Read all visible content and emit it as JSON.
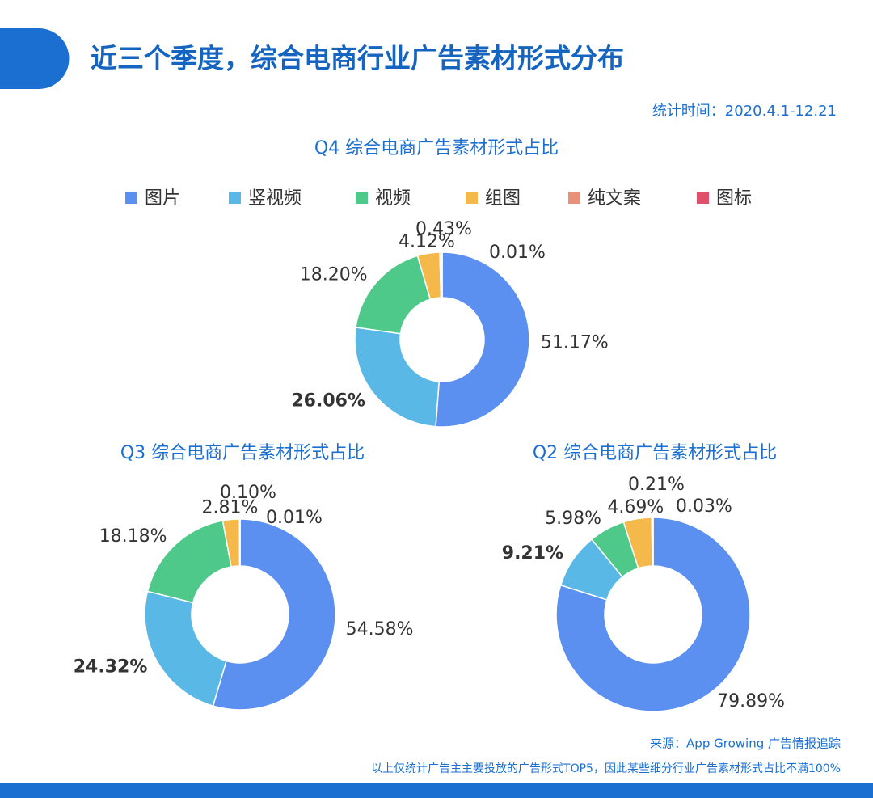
{
  "header": {
    "title": "近三个季度，综合电商行业广告素材形式分布",
    "date": "统计时间：2020.4.1-12.21"
  },
  "legend": {
    "names": [
      "图片",
      "竖视频",
      "视频",
      "组图",
      "纯文案",
      "图标"
    ],
    "colors": [
      "#5b8ff0",
      "#5ab8e6",
      "#4fc98a",
      "#f5b84a",
      "#e8907a",
      "#e0506a"
    ]
  },
  "chart_data": [
    {
      "type": "donut",
      "title": "Q4 综合电商广告素材形式占比",
      "values": [
        51.17,
        26.06,
        18.2,
        4.12,
        0.43,
        0.01
      ],
      "value_labels": [
        "51.17%",
        "26.06%",
        "18.20%",
        "4.12%",
        "0.43%",
        "0.01%"
      ]
    },
    {
      "type": "donut",
      "title": "Q3 综合电商广告素材形式占比",
      "values": [
        54.58,
        24.32,
        18.18,
        2.81,
        0.1,
        0.01
      ],
      "value_labels": [
        "54.58%",
        "24.32%",
        "18.18%",
        "2.81%",
        "0.10%",
        "0.01%"
      ]
    },
    {
      "type": "donut",
      "title": "Q2 综合电商广告素材形式占比",
      "values": [
        79.89,
        9.21,
        5.98,
        4.69,
        0.21,
        0.03
      ],
      "value_labels": [
        "79.89%",
        "9.21%",
        "5.98%",
        "4.69%",
        "0.21%",
        "0.03%"
      ]
    }
  ],
  "footer": {
    "source": "来源：App Growing 广告情报追踪",
    "note": "以上仅统计广告主主要投放的广告形式TOP5，因此某些细分行业广告素材形式占比不满100%"
  }
}
